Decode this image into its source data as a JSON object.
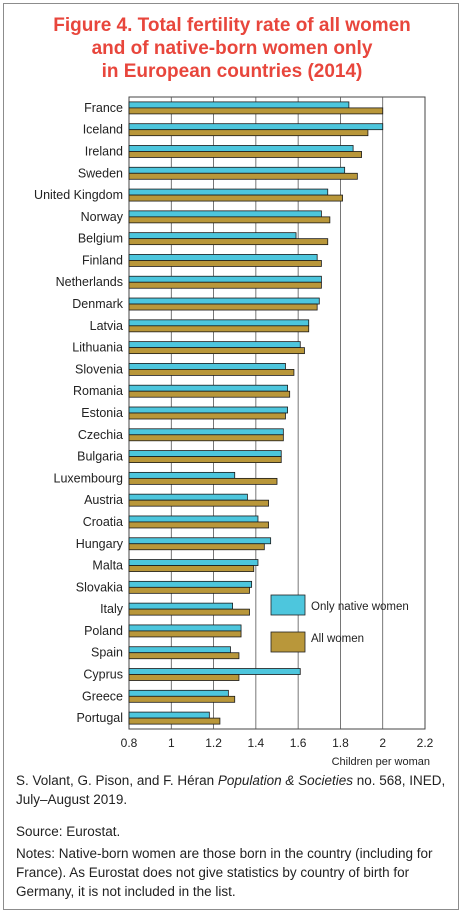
{
  "figure": {
    "title_lines": [
      "Figure 4. Total fertility rate of all women",
      "and of native-born women only",
      "in European countries (2014)"
    ]
  },
  "colors": {
    "title": "#e8463c",
    "native": "#4dc6dd",
    "all": "#b9973a",
    "bar_outline": "#1a1a1a"
  },
  "chart_data": {
    "type": "bar",
    "orientation": "horizontal",
    "title": "Figure 4. Total fertility rate of all women and of native-born women only in European countries (2014)",
    "xlabel": "Children per woman",
    "ylabel": "",
    "xlim": [
      0.8,
      2.2
    ],
    "xticks": [
      "0.8",
      "1",
      "1.2",
      "1.4",
      "1.6",
      "1.8",
      "2",
      "2.2"
    ],
    "grid": true,
    "legend_position": "right",
    "categories": [
      "France",
      "Iceland",
      "Ireland",
      "Sweden",
      "United Kingdom",
      "Norway",
      "Belgium",
      "Finland",
      "Netherlands",
      "Denmark",
      "Latvia",
      "Lithuania",
      "Slovenia",
      "Romania",
      "Estonia",
      "Czechia",
      "Bulgaria",
      "Luxembourg",
      "Austria",
      "Croatia",
      "Hungary",
      "Malta",
      "Slovakia",
      "Italy",
      "Poland",
      "Spain",
      "Cyprus",
      "Greece",
      "Portugal"
    ],
    "series": [
      {
        "name": "Only native women",
        "values": [
          1.84,
          2.0,
          1.86,
          1.82,
          1.74,
          1.71,
          1.59,
          1.69,
          1.71,
          1.7,
          1.65,
          1.61,
          1.54,
          1.55,
          1.55,
          1.53,
          1.52,
          1.3,
          1.36,
          1.41,
          1.47,
          1.41,
          1.38,
          1.29,
          1.33,
          1.28,
          1.61,
          1.27,
          1.18
        ]
      },
      {
        "name": "All women",
        "values": [
          2.0,
          1.93,
          1.9,
          1.88,
          1.81,
          1.75,
          1.74,
          1.71,
          1.71,
          1.69,
          1.65,
          1.63,
          1.58,
          1.56,
          1.54,
          1.53,
          1.52,
          1.5,
          1.46,
          1.46,
          1.44,
          1.39,
          1.37,
          1.37,
          1.33,
          1.32,
          1.32,
          1.3,
          1.23
        ]
      }
    ]
  },
  "footer": {
    "citation_authors": "S. Volant, G. Pison, and F. Héran ",
    "citation_journal": "Population & Societies",
    "citation_rest": " no. 568, INED, July–August 2019.",
    "source": "Source: Eurostat.",
    "notes": "Notes: Native-born women are those born in the country (including for France). As Eurostat does not give statistics by country of birth for Germany, it is not included in the list."
  }
}
